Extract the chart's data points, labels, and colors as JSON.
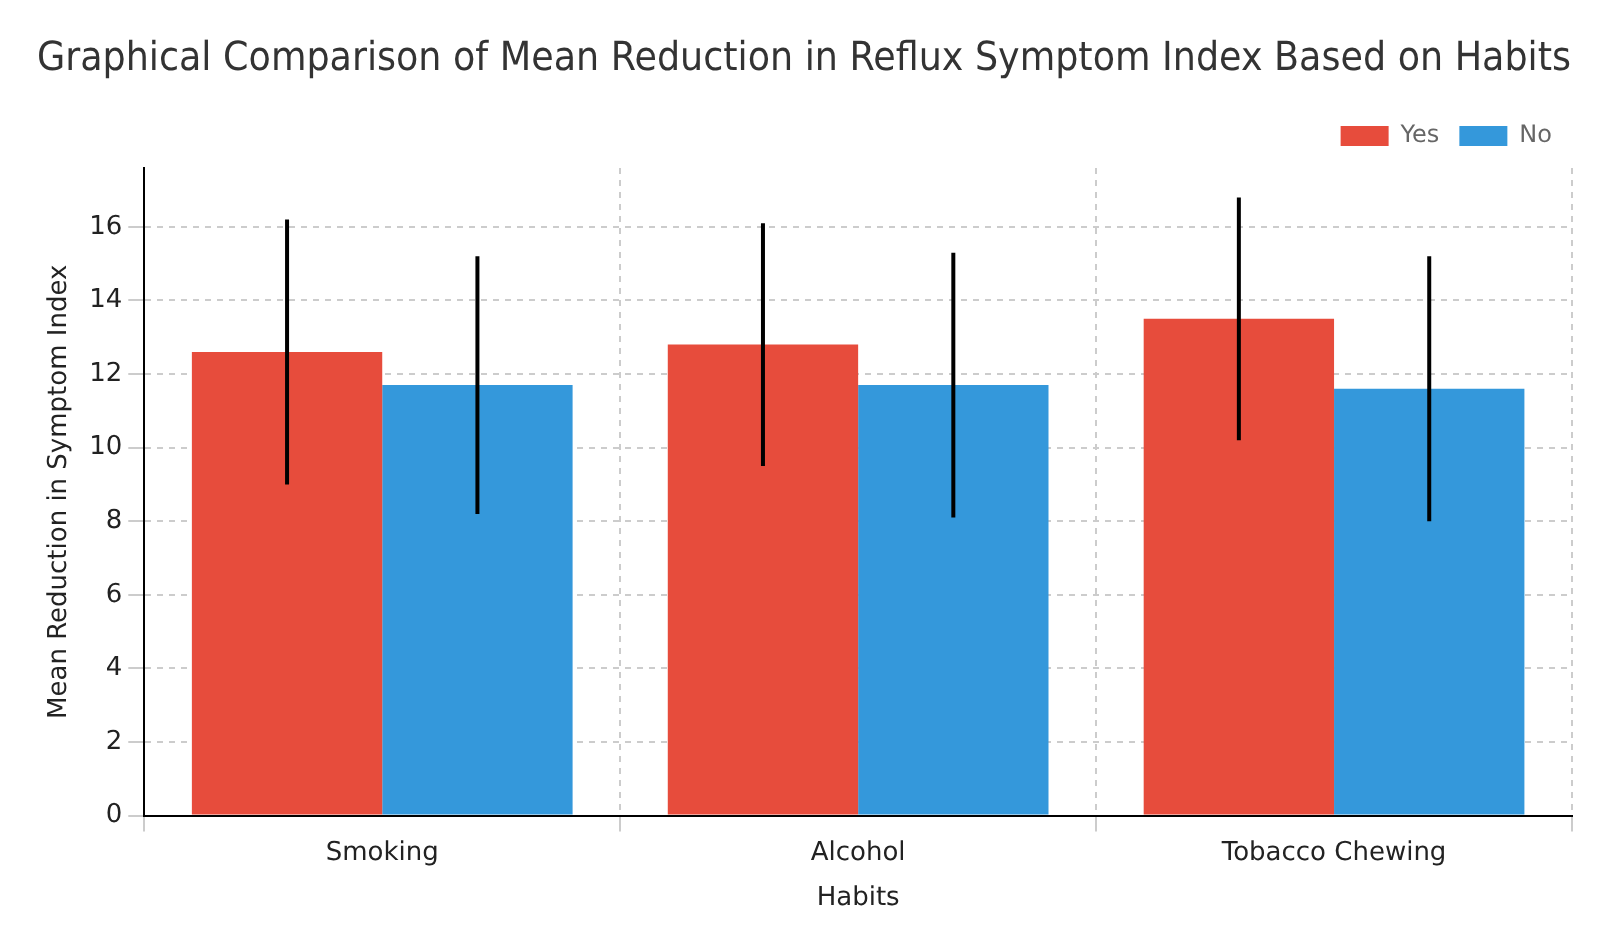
{
  "chart_data": {
    "type": "bar",
    "title": "Graphical Comparison of Mean Reduction in Reflux Symptom Index Based on Habits",
    "xlabel": "Habits",
    "ylabel": "Mean Reduction in Symptom Index",
    "categories": [
      "Smoking",
      "Alcohol",
      "Tobacco Chewing"
    ],
    "series": [
      {
        "name": "Yes",
        "color": "#e74c3c",
        "values": [
          12.6,
          12.8,
          13.5
        ],
        "errors": [
          3.6,
          3.3,
          3.3
        ]
      },
      {
        "name": "No",
        "color": "#3498db",
        "values": [
          11.7,
          11.7,
          11.6
        ],
        "errors": [
          3.5,
          3.6,
          3.6
        ]
      }
    ],
    "ylim": [
      0,
      17.6
    ],
    "yticks": [
      0,
      2,
      4,
      6,
      8,
      10,
      12,
      14,
      16
    ],
    "grid": true,
    "legend": "top right"
  }
}
